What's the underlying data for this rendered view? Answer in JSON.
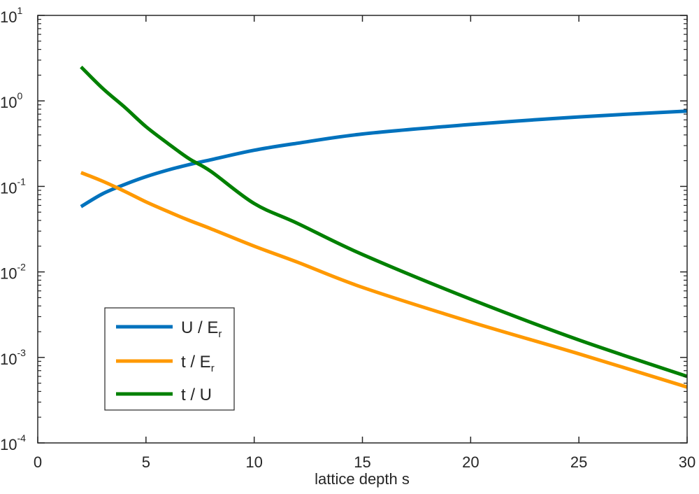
{
  "chart_data": {
    "type": "line",
    "title": "",
    "xlabel": "lattice depth s",
    "ylabel": "",
    "xlim": [
      0,
      30
    ],
    "ylim": [
      0.0001,
      10
    ],
    "yscale": "log",
    "grid": false,
    "legend_position": "lower-left",
    "x_ticks": [
      0,
      5,
      10,
      15,
      20,
      25,
      30
    ],
    "y_ticks": [
      "10^-4",
      "10^-3",
      "10^-2",
      "10^-1",
      "10^0",
      "10^1"
    ],
    "x": [
      2,
      3,
      4,
      5,
      6,
      7,
      8,
      10,
      12,
      15,
      20,
      25,
      30
    ],
    "series": [
      {
        "name": "U / E_r",
        "color": "#0072BD",
        "values": [
          0.058,
          0.082,
          0.105,
          0.13,
          0.155,
          0.18,
          0.205,
          0.265,
          0.32,
          0.41,
          0.53,
          0.65,
          0.76
        ]
      },
      {
        "name": "t / E_r",
        "color": "#FF9900",
        "values": [
          0.145,
          0.115,
          0.088,
          0.066,
          0.051,
          0.04,
          0.032,
          0.02,
          0.013,
          0.0066,
          0.0026,
          0.0011,
          0.00045
        ]
      },
      {
        "name": "t / U",
        "color": "#008000",
        "values": [
          2.5,
          1.4,
          0.85,
          0.5,
          0.32,
          0.21,
          0.15,
          0.063,
          0.037,
          0.016,
          0.0048,
          0.0016,
          0.0006
        ]
      }
    ]
  },
  "axes": {
    "x_tick_labels": [
      "0",
      "5",
      "10",
      "15",
      "20",
      "25",
      "30"
    ],
    "y_tick_labels": [
      {
        "base": "10",
        "exp": "1"
      },
      {
        "base": "10",
        "exp": "0"
      },
      {
        "base": "10",
        "exp": "-1"
      },
      {
        "base": "10",
        "exp": "-2"
      },
      {
        "base": "10",
        "exp": "-3"
      },
      {
        "base": "10",
        "exp": "-4"
      }
    ],
    "xlabel": "lattice depth s"
  },
  "legend": {
    "items": [
      {
        "label_main": "U / E",
        "label_sub": "r",
        "color": "#0072BD"
      },
      {
        "label_main": "t / E",
        "label_sub": "r",
        "color": "#FF9900"
      },
      {
        "label_main": "t / U",
        "label_sub": "",
        "color": "#008000"
      }
    ]
  }
}
